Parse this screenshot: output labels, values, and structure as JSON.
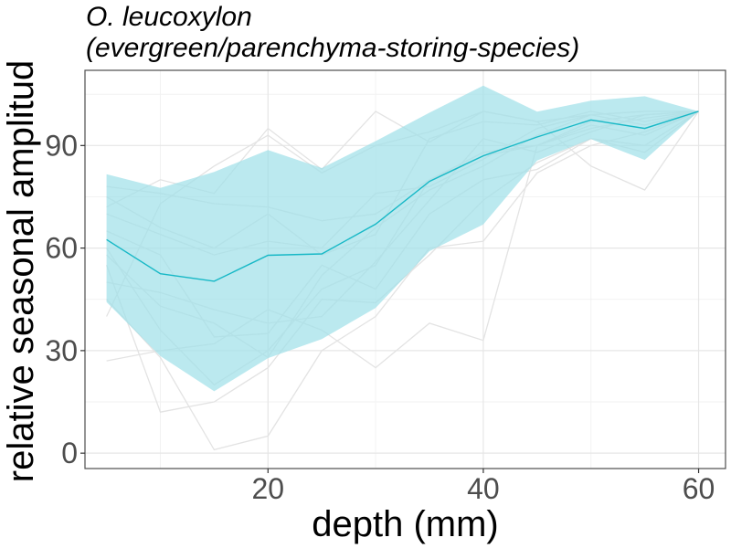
{
  "chart_data": {
    "type": "line",
    "title_line1": "O. leucoxylon",
    "title_line2": "(evergreen/parenchyma-storing-species)",
    "xlabel": "depth (mm)",
    "ylabel": "relative seasonal amplitud",
    "xlim": [
      3,
      62.5
    ],
    "ylim": [
      -4.5,
      112
    ],
    "x_ticks": [
      20,
      40,
      60
    ],
    "y_ticks": [
      0,
      30,
      60,
      90
    ],
    "grid": true,
    "colors": {
      "mean_line": "#17B8C6",
      "band_fill": "#9EE0E8",
      "individual_lines": "#E3E3E3",
      "grid_major": "#E6E6E6",
      "grid_minor": "#F2F2F2",
      "panel_border": "#4D4D4D"
    },
    "mean": {
      "x": [
        5,
        10,
        15,
        20,
        25,
        30,
        35,
        40,
        45,
        50,
        55,
        60
      ],
      "y": [
        62.5,
        52.5,
        50.3,
        57.9,
        58.3,
        67,
        79.5,
        87,
        92.5,
        97.5,
        95,
        100
      ]
    },
    "band": {
      "x": [
        5,
        10,
        15,
        20,
        25,
        30,
        35,
        40,
        45,
        50,
        55,
        60
      ],
      "upper": [
        81.6,
        77.6,
        82.3,
        88.7,
        83.4,
        91.3,
        99.6,
        107.5,
        99.9,
        103.1,
        104.4,
        100
      ],
      "lower": [
        44.2,
        28.4,
        18.1,
        27.8,
        33.4,
        42.5,
        59.1,
        66.9,
        85.6,
        91.9,
        85.8,
        100
      ]
    },
    "individual_series": [
      {
        "x": [
          5,
          10,
          15,
          20,
          25,
          30,
          35,
          40,
          45,
          50,
          55,
          60
        ],
        "y": [
          40,
          73,
          84,
          93,
          82,
          90,
          94,
          100,
          97,
          99,
          100,
          100
        ]
      },
      {
        "x": [
          5,
          10,
          15,
          20,
          25,
          30,
          35,
          40,
          45,
          50,
          55,
          60
        ],
        "y": [
          27,
          30,
          32,
          42,
          36,
          25,
          38,
          33,
          90,
          95,
          98,
          100
        ]
      },
      {
        "x": [
          5,
          10,
          15,
          20,
          25,
          30,
          35,
          40,
          45,
          50,
          55,
          60
        ],
        "y": [
          75,
          66,
          60,
          70,
          58,
          64,
          92,
          97,
          96,
          100,
          97,
          100
        ]
      },
      {
        "x": [
          5,
          10,
          15,
          20,
          25,
          30,
          35,
          40,
          45,
          50,
          55,
          60
        ],
        "y": [
          60,
          36,
          20,
          30,
          48,
          55,
          80,
          87,
          90,
          96,
          93,
          100
        ]
      },
      {
        "x": [
          5,
          10,
          15,
          20,
          25,
          30,
          35,
          40,
          45,
          50,
          55,
          60
        ],
        "y": [
          50,
          47,
          42,
          38,
          40,
          56,
          74,
          92,
          88,
          94,
          99,
          100
        ]
      },
      {
        "x": [
          5,
          10,
          15,
          20,
          25,
          30,
          35,
          40,
          45,
          50,
          55,
          60
        ],
        "y": [
          65,
          58,
          34,
          35,
          55,
          48,
          70,
          80,
          83,
          92,
          90,
          100
        ]
      },
      {
        "x": [
          5,
          10,
          15,
          20,
          25,
          30,
          35,
          40,
          45,
          50,
          55,
          60
        ],
        "y": [
          78,
          76,
          73,
          72,
          68,
          70,
          80,
          88,
          90,
          97,
          99,
          100
        ]
      },
      {
        "x": [
          5,
          10,
          15,
          20,
          25,
          30,
          35,
          40,
          45,
          50,
          55,
          60
        ],
        "y": [
          55,
          12,
          15,
          25,
          45,
          44,
          58,
          74,
          85,
          92,
          88,
          100
        ]
      },
      {
        "x": [
          5,
          10,
          15,
          20,
          25,
          30,
          35,
          40,
          45,
          50,
          55,
          60
        ],
        "y": [
          70,
          64,
          58,
          62,
          60,
          76,
          78,
          86,
          95,
          99,
          96,
          100
        ]
      },
      {
        "x": [
          5,
          10,
          15,
          20,
          25,
          30,
          35,
          40,
          45,
          50,
          55,
          60
        ],
        "y": [
          45,
          28,
          1,
          5,
          30,
          40,
          60,
          62,
          82,
          90,
          94,
          100
        ]
      },
      {
        "x": [
          5,
          10,
          15,
          20,
          25,
          30,
          35,
          40,
          45,
          50,
          55,
          60
        ],
        "y": [
          72,
          80,
          76,
          95,
          83,
          100,
          91,
          100,
          97,
          84,
          77,
          100
        ]
      },
      {
        "x": [
          5,
          10,
          15,
          20,
          25,
          30,
          35,
          40,
          45,
          50,
          55,
          60
        ],
        "y": [
          58,
          43,
          38,
          28,
          52,
          66,
          77,
          84,
          93,
          99,
          100,
          100
        ]
      }
    ]
  }
}
